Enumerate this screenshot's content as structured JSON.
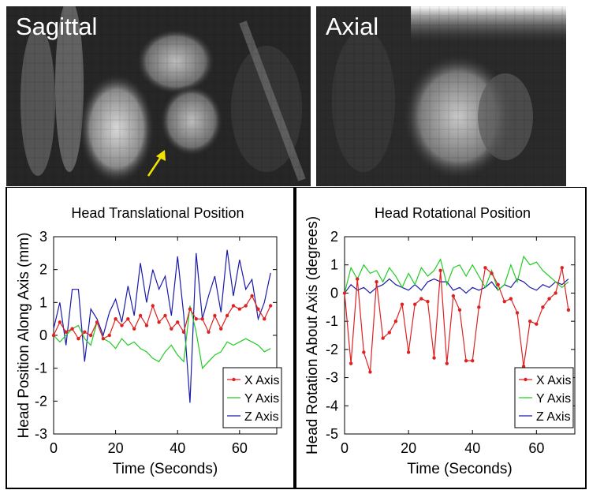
{
  "images": [
    {
      "label": "Sagittal"
    },
    {
      "label": "Axial"
    }
  ],
  "colors": {
    "x_axis": "#dd2222",
    "y_axis": "#22cc22",
    "z_axis": "#1a1aaa"
  },
  "chart_data": [
    {
      "type": "line",
      "title": "Head Translational Position",
      "xlabel": "Time (Seconds)",
      "ylabel": "Head Position Along Axis (mm)",
      "xlim": [
        0,
        72
      ],
      "ylim": [
        -3,
        3
      ],
      "xticks": [
        0,
        20,
        40,
        60
      ],
      "yticks": [
        -3,
        -2,
        -1,
        0,
        1,
        2,
        3
      ],
      "legend_position": "bottom-right",
      "x": [
        0,
        2,
        4,
        6,
        8,
        10,
        12,
        14,
        16,
        18,
        20,
        22,
        24,
        26,
        28,
        30,
        32,
        34,
        36,
        38,
        40,
        42,
        44,
        46,
        48,
        50,
        52,
        54,
        56,
        58,
        60,
        62,
        64,
        66,
        68,
        70
      ],
      "series": [
        {
          "name": "X Axis",
          "color_key": "x_axis",
          "markers": true,
          "values": [
            0.0,
            0.4,
            0.1,
            0.2,
            -0.1,
            0.1,
            0.0,
            0.4,
            -0.1,
            0.0,
            0.5,
            0.3,
            0.5,
            0.2,
            0.6,
            0.3,
            0.9,
            0.4,
            0.6,
            0.2,
            0.4,
            0.1,
            0.8,
            0.5,
            0.5,
            0.1,
            0.6,
            0.2,
            0.6,
            0.9,
            0.8,
            0.9,
            1.2,
            0.8,
            0.5,
            0.9
          ]
        },
        {
          "name": "Y Axis",
          "color_key": "y_axis",
          "markers": false,
          "values": [
            0.0,
            -0.2,
            0.0,
            0.2,
            0.3,
            -0.1,
            -0.3,
            0.4,
            -0.1,
            -0.2,
            -0.4,
            -0.1,
            -0.3,
            -0.2,
            -0.4,
            -0.5,
            -0.7,
            -0.8,
            -0.5,
            -0.3,
            -0.6,
            -0.8,
            0.9,
            0.1,
            -1.0,
            -0.8,
            -0.6,
            -0.5,
            -0.2,
            -0.3,
            -0.2,
            -0.1,
            -0.2,
            -0.3,
            -0.5,
            -0.4
          ]
        },
        {
          "name": "Z Axis",
          "color_key": "z_axis",
          "markers": false,
          "values": [
            0.2,
            1.0,
            -0.3,
            1.4,
            1.4,
            -0.8,
            0.8,
            0.5,
            0.0,
            0.7,
            1.1,
            0.4,
            1.5,
            0.6,
            2.2,
            1.0,
            2.0,
            1.4,
            1.8,
            0.6,
            2.4,
            0.6,
            -2.05,
            2.5,
            0.5,
            1.2,
            1.8,
            0.7,
            2.6,
            1.2,
            2.3,
            1.4,
            1.7,
            0.5,
            1.0,
            1.9
          ]
        }
      ]
    },
    {
      "type": "line",
      "title": "Head Rotational Position",
      "xlabel": "Time (Seconds)",
      "ylabel": "Head Rotation About Axis (degrees)",
      "xlim": [
        0,
        72
      ],
      "ylim": [
        -5,
        2
      ],
      "xticks": [
        0,
        20,
        40,
        60
      ],
      "yticks": [
        -5,
        -4,
        -3,
        -2,
        -1,
        0,
        1,
        2
      ],
      "legend_position": "bottom-right",
      "x": [
        0,
        2,
        4,
        6,
        8,
        10,
        12,
        14,
        16,
        18,
        20,
        22,
        24,
        26,
        28,
        30,
        32,
        34,
        36,
        38,
        40,
        42,
        44,
        46,
        48,
        50,
        52,
        54,
        56,
        58,
        60,
        62,
        64,
        66,
        68,
        70
      ],
      "series": [
        {
          "name": "X Axis",
          "color_key": "x_axis",
          "markers": true,
          "values": [
            0.0,
            -2.5,
            0.5,
            -2.1,
            -2.8,
            0.4,
            -1.6,
            -1.4,
            -1.0,
            -0.4,
            -2.1,
            -0.4,
            -0.2,
            -0.3,
            -2.3,
            0.8,
            -2.5,
            -0.1,
            -0.6,
            -2.4,
            -2.4,
            -0.5,
            0.9,
            0.7,
            0.3,
            -0.3,
            -0.2,
            -0.7,
            -2.6,
            -1.0,
            -1.1,
            -0.5,
            -0.2,
            0.0,
            0.9,
            -0.6
          ]
        },
        {
          "name": "Y Axis",
          "color_key": "y_axis",
          "markers": false,
          "values": [
            0.0,
            0.9,
            0.5,
            1.0,
            0.7,
            0.8,
            0.4,
            0.9,
            0.6,
            0.2,
            0.7,
            0.3,
            0.9,
            0.6,
            0.8,
            1.2,
            0.3,
            0.9,
            1.0,
            0.6,
            1.0,
            0.6,
            0.2,
            0.8,
            0.1,
            0.3,
            1.0,
            0.4,
            1.3,
            1.0,
            1.1,
            0.8,
            0.6,
            0.4,
            0.2,
            0.4
          ]
        },
        {
          "name": "Z Axis",
          "color_key": "z_axis",
          "markers": false,
          "values": [
            0.0,
            0.3,
            0.1,
            0.2,
            0.0,
            0.2,
            0.3,
            0.5,
            0.3,
            0.2,
            0.1,
            0.3,
            0.1,
            0.4,
            0.5,
            0.4,
            0.4,
            0.1,
            0.2,
            0.0,
            0.2,
            0.1,
            0.2,
            0.4,
            0.1,
            0.3,
            0.2,
            0.5,
            0.4,
            0.2,
            0.1,
            0.3,
            0.2,
            0.4,
            0.3,
            0.5
          ]
        }
      ]
    }
  ]
}
